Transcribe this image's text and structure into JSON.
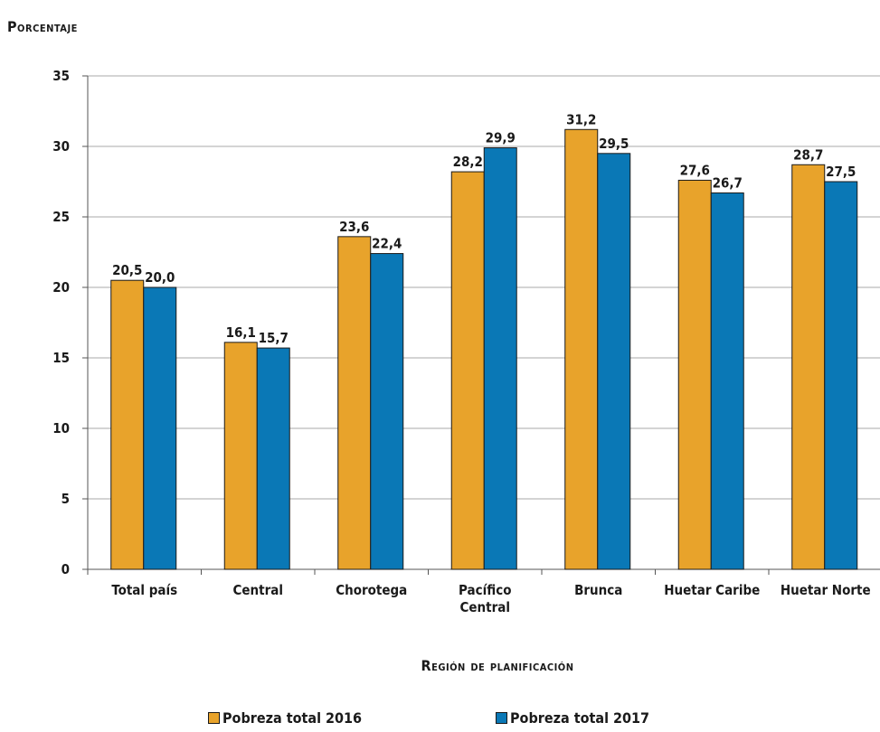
{
  "chart_data": {
    "type": "bar",
    "ylabel": "Porcentaje",
    "xlabel": "Región de planificación",
    "ylim": [
      0,
      35
    ],
    "yticks": [
      0,
      5,
      10,
      15,
      20,
      25,
      30,
      35
    ],
    "grid": true,
    "legend_position": "bottom",
    "categories": [
      [
        "Total país"
      ],
      [
        "Central"
      ],
      [
        "Chorotega"
      ],
      [
        "Pacífico",
        "Central"
      ],
      [
        "Brunca"
      ],
      [
        "Huetar Caribe"
      ],
      [
        "Huetar Norte"
      ]
    ],
    "series": [
      {
        "name": "Pobreza total 2016",
        "color": "#E8A32B",
        "values": [
          20.5,
          16.1,
          23.6,
          28.2,
          31.2,
          27.6,
          28.7
        ],
        "labels": [
          "20,5",
          "16,1",
          "23,6",
          "28,2",
          "31,2",
          "27,6",
          "28,7"
        ]
      },
      {
        "name": "Pobreza total 2017",
        "color": "#0A78B6",
        "values": [
          20.0,
          15.7,
          22.4,
          29.9,
          29.5,
          26.7,
          27.5
        ],
        "labels": [
          "20,0",
          "15,7",
          "22,4",
          "29,9",
          "29,5",
          "26,7",
          "27,5"
        ]
      }
    ]
  }
}
